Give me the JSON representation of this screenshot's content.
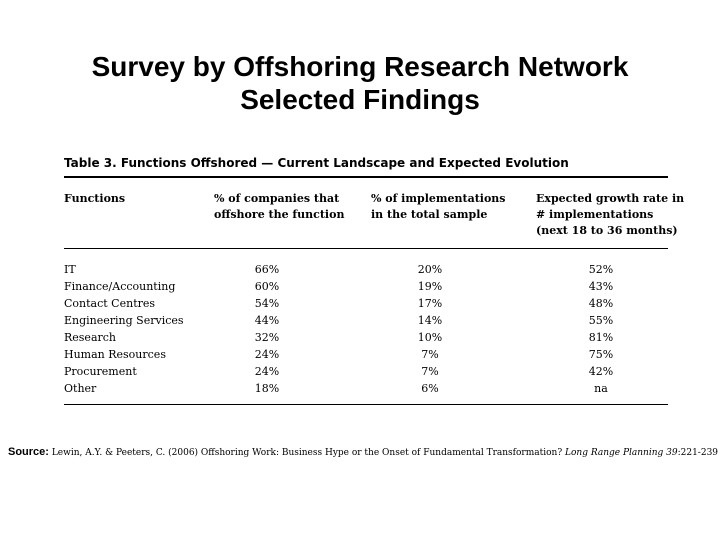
{
  "slide": {
    "title_line1": "Survey by Offshoring Research Network",
    "title_line2": "Selected Findings"
  },
  "table": {
    "caption": "Table 3. Functions Offshored — Current Landscape and Expected Evolution",
    "headers": {
      "col1": [
        "Functions"
      ],
      "col2": [
        "% of companies that",
        "offshore the function"
      ],
      "col3": [
        "% of implementations",
        "in the total sample"
      ],
      "col4": [
        "Expected growth rate in",
        "# implementations",
        "(next 18 to 36 months)"
      ]
    },
    "rows": [
      {
        "function": "IT",
        "companies": "66%",
        "implementations": "20%",
        "growth": "52%"
      },
      {
        "function": "Finance/Accounting",
        "companies": "60%",
        "implementations": "19%",
        "growth": "43%"
      },
      {
        "function": "Contact Centres",
        "companies": "54%",
        "implementations": "17%",
        "growth": "48%"
      },
      {
        "function": "Engineering Services",
        "companies": "44%",
        "implementations": "14%",
        "growth": "55%"
      },
      {
        "function": "Research",
        "companies": "32%",
        "implementations": "10%",
        "growth": "81%"
      },
      {
        "function": "Human Resources",
        "companies": "24%",
        "implementations": "7%",
        "growth": "75%"
      },
      {
        "function": "Procurement",
        "companies": "24%",
        "implementations": "7%",
        "growth": "42%"
      },
      {
        "function": "Other",
        "companies": "18%",
        "implementations": "6%",
        "growth": "na"
      }
    ]
  },
  "source": {
    "label": "Source:",
    "text": " Lewin, A.Y. & Peeters, C. (2006) Offshoring Work: Business Hype or the Onset of Fundamental Transformation? ",
    "journal": "Long Range Planning 39",
    "pages": ":221-239"
  }
}
